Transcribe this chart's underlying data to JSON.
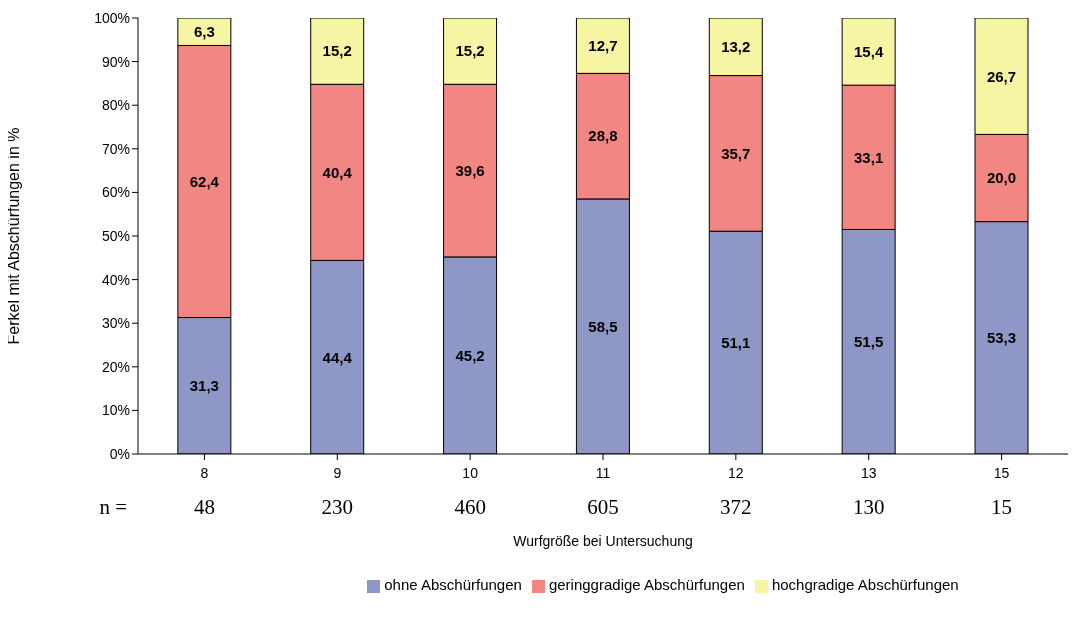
{
  "chart_data": {
    "type": "bar",
    "stacked": true,
    "xlabel": "Wurfgröße bei Untersuchung",
    "ylabel": "Ferkel mit Abschürfungen in %",
    "categories": [
      "8",
      "9",
      "10",
      "11",
      "12",
      "13",
      "15"
    ],
    "series": [
      {
        "name": "ohne Abschürfungen",
        "color": "#8f97c6",
        "values": [
          31.3,
          44.4,
          45.2,
          58.5,
          51.1,
          51.5,
          53.3
        ],
        "value_labels": [
          "31,3",
          "44,4",
          "45,2",
          "58,5",
          "51,1",
          "51,5",
          "53,3"
        ]
      },
      {
        "name": "geringgradige Abschürfungen",
        "color": "#f28682",
        "values": [
          62.4,
          40.4,
          39.6,
          28.8,
          35.7,
          33.1,
          20.0
        ],
        "value_labels": [
          "62,4",
          "40,4",
          "39,6",
          "28,8",
          "35,7",
          "33,1",
          "20,0"
        ]
      },
      {
        "name": "hochgradige Abschürfungen",
        "color": "#f5f5a3",
        "values": [
          6.3,
          15.2,
          15.2,
          12.7,
          13.2,
          15.4,
          26.7
        ],
        "value_labels": [
          "6,3",
          "15,2",
          "15,2",
          "12,7",
          "13,2",
          "15,4",
          "26,7"
        ]
      }
    ],
    "ylim": [
      0,
      100
    ],
    "yticks": [
      {
        "value": 0,
        "label": "0%"
      },
      {
        "value": 10,
        "label": "10%"
      },
      {
        "value": 20,
        "label": "20%"
      },
      {
        "value": 30,
        "label": "30%"
      },
      {
        "value": 40,
        "label": "40%"
      },
      {
        "value": 50,
        "label": "50%"
      },
      {
        "value": 60,
        "label": "60%"
      },
      {
        "value": 70,
        "label": "70%"
      },
      {
        "value": 80,
        "label": "80%"
      },
      {
        "value": 90,
        "label": "90%"
      },
      {
        "value": 100,
        "label": "100%"
      }
    ],
    "legend": "bottom",
    "annotations": [
      "n =",
      "48",
      "230",
      "460",
      "605",
      "372",
      "130",
      "15"
    ]
  }
}
